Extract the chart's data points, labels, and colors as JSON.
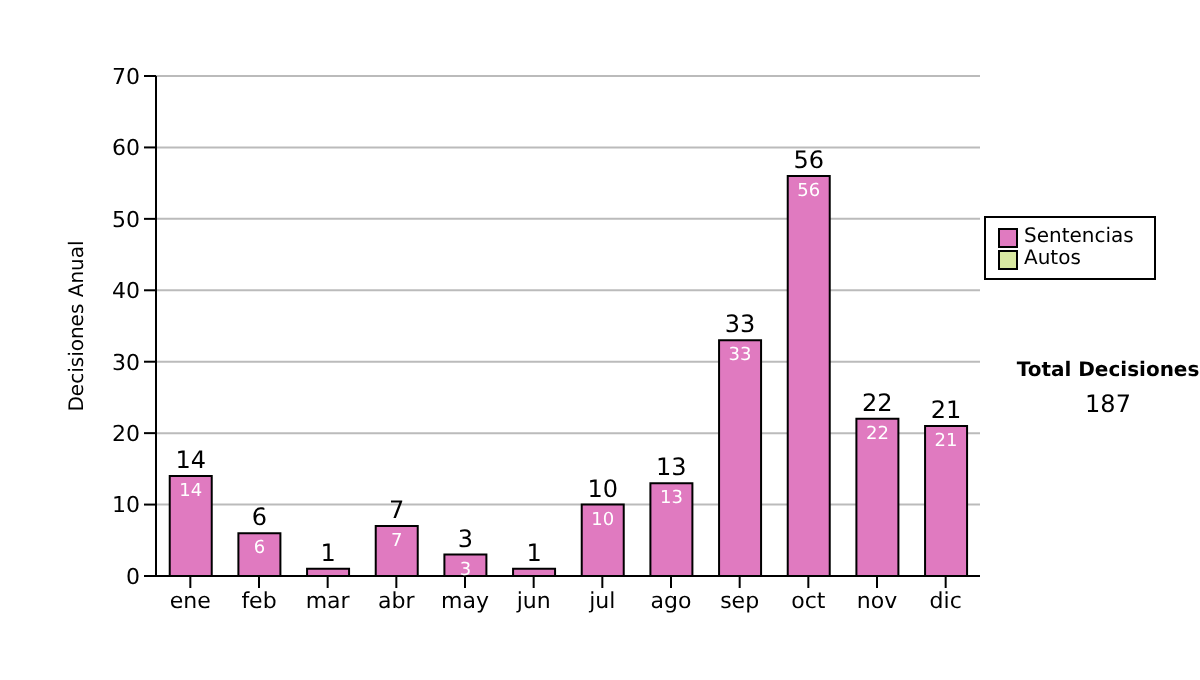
{
  "chart_data": {
    "type": "bar",
    "stacked": true,
    "ylabel": "Decisiones Anual",
    "categories": [
      "ene",
      "feb",
      "mar",
      "abr",
      "may",
      "jun",
      "jul",
      "ago",
      "sep",
      "oct",
      "nov",
      "dic"
    ],
    "series": [
      {
        "name": "Sentencias",
        "color": "#e07ac0",
        "values": [
          14,
          6,
          1,
          7,
          3,
          1,
          10,
          13,
          33,
          56,
          22,
          21
        ],
        "value_labels": [
          "14",
          "6",
          null,
          "7",
          "3",
          null,
          "10",
          "13",
          "33",
          "56",
          "22",
          "21"
        ]
      },
      {
        "name": "Autos",
        "color": "#d8e8a0",
        "values": [
          0,
          0,
          0,
          0,
          0,
          0,
          0,
          0,
          0,
          0,
          0,
          0
        ]
      }
    ],
    "totals": [
      "14",
      "6",
      "1",
      "7",
      "3",
      "1",
      "10",
      "13",
      "33",
      "56",
      "22",
      "21"
    ],
    "ylim": [
      0,
      70
    ],
    "yticks": [
      0,
      10,
      20,
      30,
      40,
      50,
      60,
      70
    ],
    "grid": "y",
    "legend": "right",
    "annotations": [
      "Total Decisiones",
      "187"
    ]
  }
}
